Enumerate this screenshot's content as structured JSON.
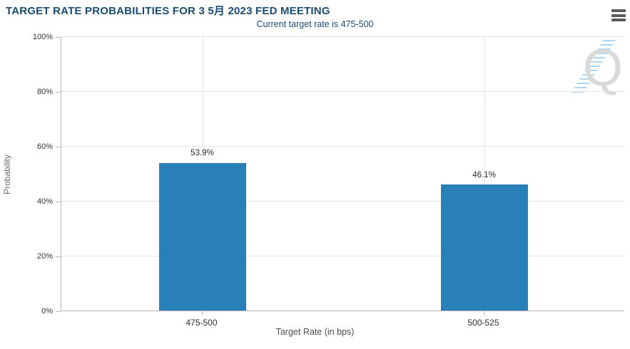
{
  "header": {
    "menu_icon": "hamburger-icon"
  },
  "chart_data": {
    "type": "bar",
    "title": "TARGET RATE PROBABILITIES FOR 3 5月 2023 FED MEETING",
    "subtitle": "Current target rate is 475-500",
    "categories": [
      "475-500",
      "500-525"
    ],
    "values": [
      53.9,
      46.1
    ],
    "value_labels": [
      "53.9%",
      "46.1%"
    ],
    "xlabel": "Target Rate (in bps)",
    "ylabel": "Probability",
    "ylim": [
      0,
      100
    ],
    "yticks": [
      0,
      20,
      40,
      60,
      80,
      100
    ],
    "ytick_labels": [
      "0%",
      "20%",
      "40%",
      "60%",
      "80%",
      "100%"
    ],
    "grid": true,
    "legend": "none",
    "bar_color": "#2980b8",
    "watermark": "Q"
  }
}
